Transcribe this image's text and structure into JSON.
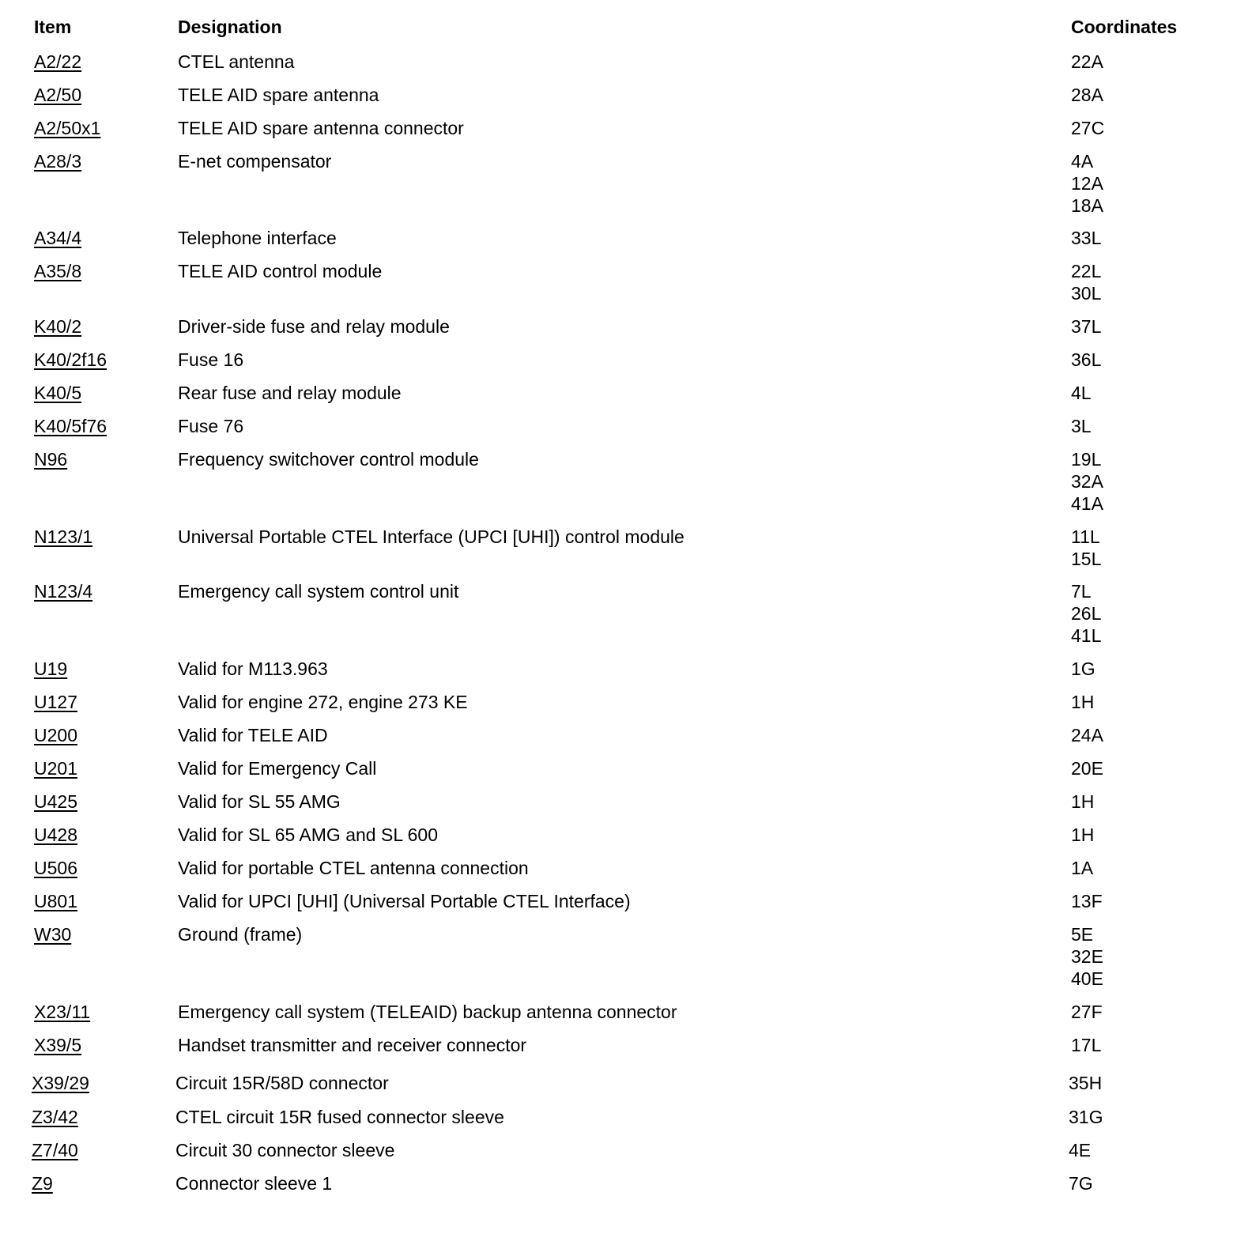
{
  "headers": {
    "item": "Item",
    "designation": "Designation",
    "coordinates": "Coordinates"
  },
  "rows": [
    {
      "item": "A2/22",
      "designation": "CTEL antenna",
      "coordinates": [
        "22A"
      ]
    },
    {
      "item": "A2/50",
      "designation": "TELE AID spare antenna",
      "coordinates": [
        "28A"
      ]
    },
    {
      "item": "A2/50x1",
      "designation": "TELE AID spare antenna connector",
      "coordinates": [
        "27C"
      ]
    },
    {
      "item": "A28/3",
      "designation": "E-net compensator",
      "coordinates": [
        "4A",
        "12A",
        "18A"
      ]
    },
    {
      "item": "A34/4",
      "designation": "Telephone interface",
      "coordinates": [
        "33L"
      ]
    },
    {
      "item": "A35/8",
      "designation": "TELE AID control module",
      "coordinates": [
        "22L",
        "30L"
      ]
    },
    {
      "item": "K40/2",
      "designation": "Driver-side fuse and relay module",
      "coordinates": [
        "37L"
      ]
    },
    {
      "item": "K40/2f16",
      "designation": "Fuse 16",
      "coordinates": [
        "36L"
      ]
    },
    {
      "item": "K40/5",
      "designation": "Rear fuse and relay module",
      "coordinates": [
        "4L"
      ]
    },
    {
      "item": "K40/5f76",
      "designation": "Fuse 76",
      "coordinates": [
        "3L"
      ]
    },
    {
      "item": "N96",
      "designation": "Frequency switchover control module",
      "coordinates": [
        "19L",
        "32A",
        "41A"
      ]
    },
    {
      "item": "N123/1",
      "designation": "Universal Portable CTEL Interface (UPCI [UHI]) control module",
      "coordinates": [
        "11L",
        "15L"
      ]
    },
    {
      "item": "N123/4",
      "designation": "Emergency call system control unit",
      "coordinates": [
        "7L",
        "26L",
        "41L"
      ]
    },
    {
      "item": "U19",
      "designation": "Valid for M113.963",
      "coordinates": [
        "1G"
      ]
    },
    {
      "item": "U127",
      "designation": "Valid for engine 272, engine 273 KE",
      "coordinates": [
        "1H"
      ]
    },
    {
      "item": "U200",
      "designation": "Valid for TELE AID",
      "coordinates": [
        "24A"
      ]
    },
    {
      "item": "U201",
      "designation": "Valid for Emergency Call",
      "coordinates": [
        "20E"
      ]
    },
    {
      "item": "U425",
      "designation": "Valid for SL 55 AMG",
      "coordinates": [
        "1H"
      ]
    },
    {
      "item": "U428",
      "designation": "Valid for SL 65 AMG and SL 600",
      "coordinates": [
        "1H"
      ]
    },
    {
      "item": "U506",
      "designation": "Valid for portable CTEL antenna connection",
      "coordinates": [
        "1A"
      ]
    },
    {
      "item": "U801",
      "designation": "Valid for UPCI [UHI] (Universal Portable CTEL Interface)",
      "coordinates": [
        "13F"
      ]
    },
    {
      "item": "W30",
      "designation": "Ground (frame)",
      "coordinates": [
        "5E",
        "32E",
        "40E"
      ]
    },
    {
      "item": "X23/11",
      "designation": "Emergency call system (TELEAID) backup antenna connector",
      "coordinates": [
        "27F"
      ]
    },
    {
      "item": "X39/5",
      "designation": "Handset transmitter and receiver connector",
      "coordinates": [
        "17L"
      ]
    },
    {
      "item": "X39/29",
      "designation": "Circuit 15R/58D connector",
      "coordinates": [
        "35H"
      ]
    },
    {
      "item": "Z3/42",
      "designation": "CTEL circuit 15R fused connector sleeve",
      "coordinates": [
        "31G"
      ]
    },
    {
      "item": "Z7/40",
      "designation": "Circuit 30 connector sleeve",
      "coordinates": [
        "4E"
      ]
    },
    {
      "item": "Z9",
      "designation": "Connector sleeve 1",
      "coordinates": [
        "7G"
      ]
    }
  ]
}
